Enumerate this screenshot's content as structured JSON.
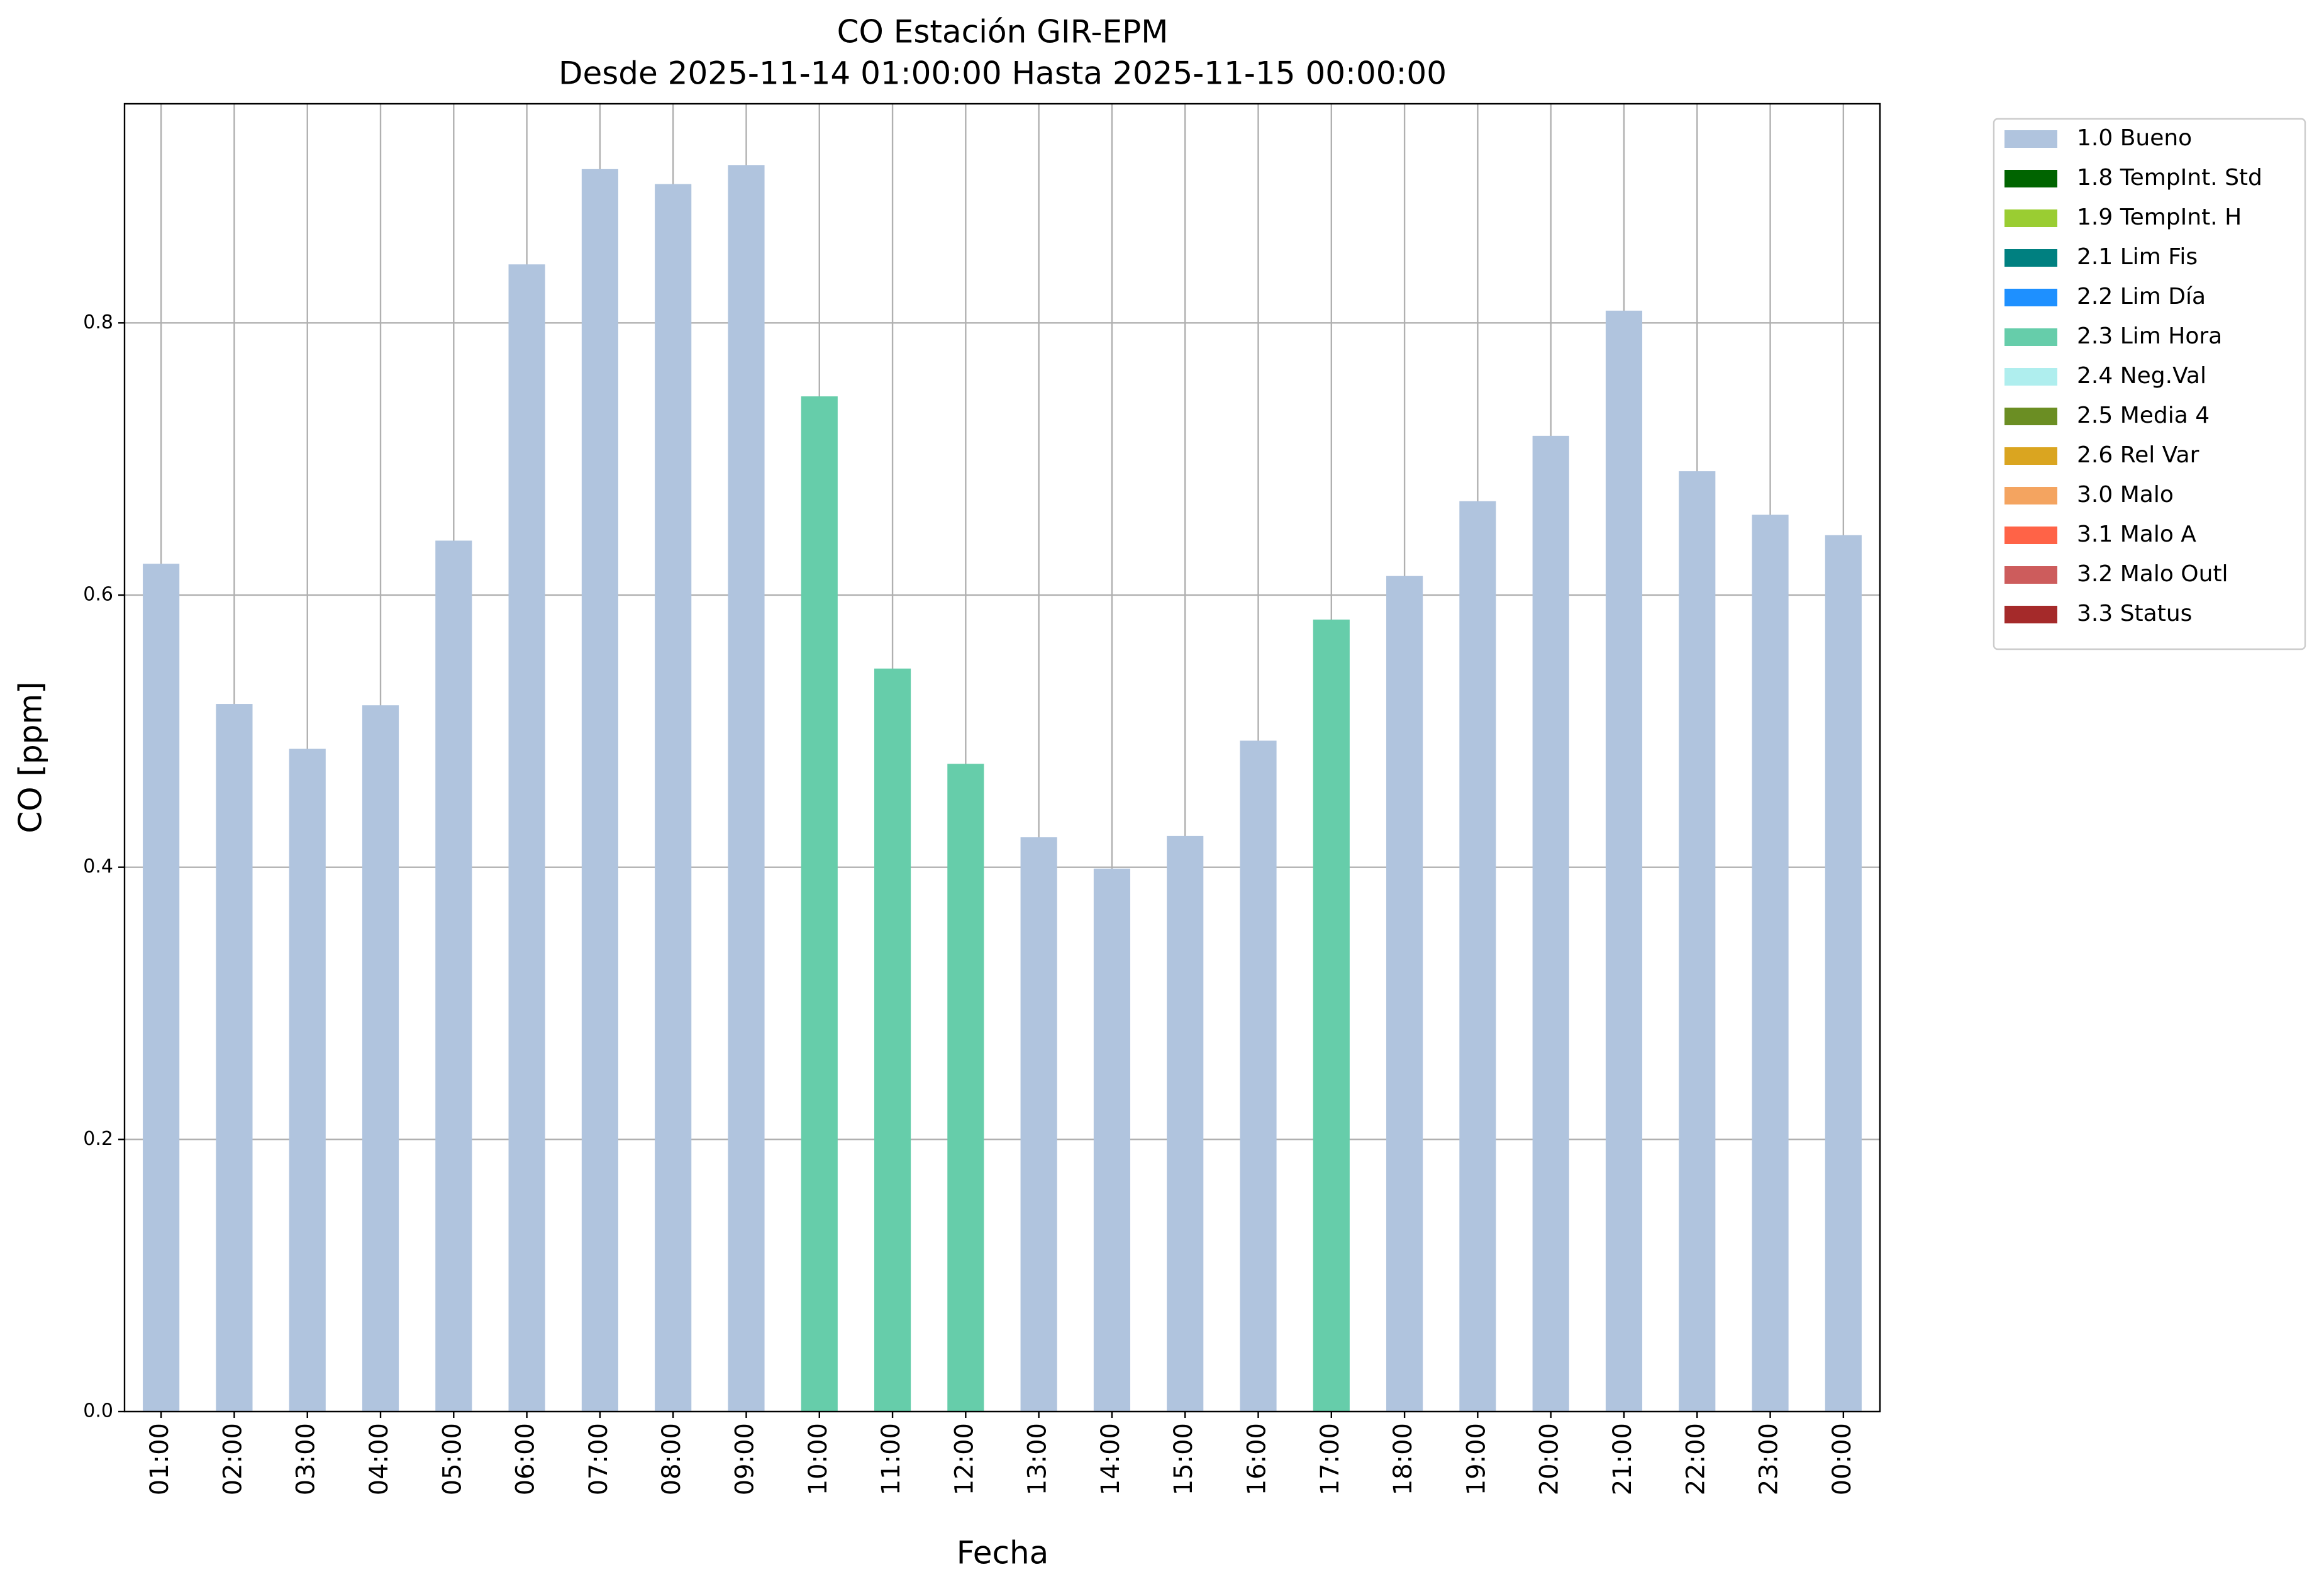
{
  "chart_data": {
    "type": "stacked-bar",
    "title": "CO Estación GIR-EPM",
    "subtitle": "Desde 2025-11-14 01:00:00 Hasta 2025-11-15 00:00:00",
    "x_label": "Fecha",
    "y_label": "CO [ppm]",
    "categories": [
      "01:00",
      "02:00",
      "03:00",
      "04:00",
      "05:00",
      "06:00",
      "07:00",
      "08:00",
      "09:00",
      "10:00",
      "11:00",
      "12:00",
      "13:00",
      "14:00",
      "15:00",
      "16:00",
      "17:00",
      "18:00",
      "19:00",
      "20:00",
      "21:00",
      "22:00",
      "23:00",
      "00:00"
    ],
    "series": [
      {
        "name": "1.0 Bueno",
        "color": "#b0c4de",
        "values": [
          0.623,
          0.52,
          0.487,
          0.519,
          0.64,
          0.843,
          0.913,
          0.902,
          0.916,
          null,
          null,
          null,
          0.422,
          0.399,
          0.423,
          0.493,
          null,
          0.614,
          0.669,
          0.717,
          0.809,
          0.691,
          0.659,
          0.644
        ]
      },
      {
        "name": "1.8 TempInt. Std",
        "color": "#006400",
        "values": [
          null,
          null,
          null,
          null,
          null,
          null,
          null,
          null,
          null,
          null,
          null,
          null,
          null,
          null,
          null,
          null,
          null,
          null,
          null,
          null,
          null,
          null,
          null,
          null
        ]
      },
      {
        "name": "1.9 TempInt. H",
        "color": "#9acd32",
        "values": [
          null,
          null,
          null,
          null,
          null,
          null,
          null,
          null,
          null,
          null,
          null,
          null,
          null,
          null,
          null,
          null,
          null,
          null,
          null,
          null,
          null,
          null,
          null,
          null
        ]
      },
      {
        "name": "2.1 Lim Fis",
        "color": "#008080",
        "values": [
          null,
          null,
          null,
          null,
          null,
          null,
          null,
          null,
          null,
          null,
          null,
          null,
          null,
          null,
          null,
          null,
          null,
          null,
          null,
          null,
          null,
          null,
          null,
          null
        ]
      },
      {
        "name": "2.2 Lim Día",
        "color": "#1e90ff",
        "values": [
          null,
          null,
          null,
          null,
          null,
          null,
          null,
          null,
          null,
          null,
          null,
          null,
          null,
          null,
          null,
          null,
          null,
          null,
          null,
          null,
          null,
          null,
          null,
          null
        ]
      },
      {
        "name": "2.3 Lim Hora",
        "color": "#66cdaa",
        "values": [
          null,
          null,
          null,
          null,
          null,
          null,
          null,
          null,
          null,
          0.746,
          0.546,
          0.476,
          null,
          null,
          null,
          null,
          0.582,
          null,
          null,
          null,
          null,
          null,
          null,
          null
        ]
      },
      {
        "name": "2.4 Neg.Val",
        "color": "#afeeee",
        "values": [
          null,
          null,
          null,
          null,
          null,
          null,
          null,
          null,
          null,
          null,
          null,
          null,
          null,
          null,
          null,
          null,
          null,
          null,
          null,
          null,
          null,
          null,
          null,
          null
        ]
      },
      {
        "name": "2.5 Media 4",
        "color": "#6b8e23",
        "values": [
          null,
          null,
          null,
          null,
          null,
          null,
          null,
          null,
          null,
          null,
          null,
          null,
          null,
          null,
          null,
          null,
          null,
          null,
          null,
          null,
          null,
          null,
          null,
          null
        ]
      },
      {
        "name": "2.6 Rel Var",
        "color": "#daa520",
        "values": [
          null,
          null,
          null,
          null,
          null,
          null,
          null,
          null,
          null,
          null,
          null,
          null,
          null,
          null,
          null,
          null,
          null,
          null,
          null,
          null,
          null,
          null,
          null,
          null
        ]
      },
      {
        "name": "3.0 Malo",
        "color": "#f4a460",
        "values": [
          null,
          null,
          null,
          null,
          null,
          null,
          null,
          null,
          null,
          null,
          null,
          null,
          null,
          null,
          null,
          null,
          null,
          null,
          null,
          null,
          null,
          null,
          null,
          null
        ]
      },
      {
        "name": "3.1 Malo A",
        "color": "#ff6347",
        "values": [
          null,
          null,
          null,
          null,
          null,
          null,
          null,
          null,
          null,
          null,
          null,
          null,
          null,
          null,
          null,
          null,
          null,
          null,
          null,
          null,
          null,
          null,
          null,
          null
        ]
      },
      {
        "name": "3.2 Malo Outl",
        "color": "#cd5c5c",
        "values": [
          null,
          null,
          null,
          null,
          null,
          null,
          null,
          null,
          null,
          null,
          null,
          null,
          null,
          null,
          null,
          null,
          null,
          null,
          null,
          null,
          null,
          null,
          null,
          null
        ]
      },
      {
        "name": "3.3 Status",
        "color": "#a52a2a",
        "values": [
          null,
          null,
          null,
          null,
          null,
          null,
          null,
          null,
          null,
          null,
          null,
          null,
          null,
          null,
          null,
          null,
          null,
          null,
          null,
          null,
          null,
          null,
          null,
          null
        ]
      }
    ],
    "ylim": [
      0,
      0.961
    ],
    "yticks": [
      {
        "value": 0,
        "label": "0.0"
      },
      0.2,
      0.4,
      0.6,
      0.8
    ],
    "grid": true,
    "legend": "outside-right"
  }
}
